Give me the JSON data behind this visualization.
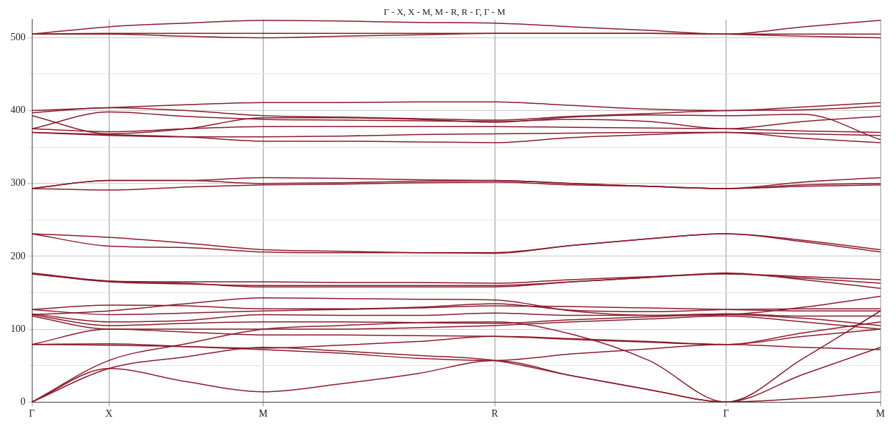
{
  "chart_data": {
    "type": "line",
    "title": "Γ - X, X - M, M - R, R - Γ, Γ - M",
    "categories": [
      "Γ",
      "X",
      null,
      "M",
      null,
      null,
      "R",
      null,
      null,
      "Γ",
      null,
      "M"
    ],
    "ylim": [
      0,
      525
    ],
    "yticks": [
      0,
      {
        "value": 50,
        "label": null
      },
      100,
      {
        "value": 150,
        "label": null
      },
      200,
      {
        "value": 250,
        "label": null
      },
      300,
      {
        "value": 350,
        "label": null
      },
      400,
      {
        "value": 450,
        "label": null
      },
      500
    ],
    "grid": true,
    "legend": false,
    "marker": "none",
    "line_style": "solid",
    "series": [
      {
        "color": "#8b1a2b",
        "values": [
          0,
          46,
          28,
          14,
          25,
          39,
          57,
          36,
          17,
          0,
          5,
          14
        ]
      },
      {
        "color": "#8b1a2b",
        "values": [
          0,
          46,
          62,
          75,
          70,
          64,
          57,
          36,
          17,
          0,
          38,
          75
        ]
      },
      {
        "color": "#8b1a2b",
        "values": [
          0,
          57,
          80,
          100,
          105,
          109,
          110,
          93,
          57,
          0,
          60,
          125
        ]
      },
      {
        "color": "#8b1a2b",
        "values": [
          79,
          80,
          76,
          72,
          67,
          60,
          57,
          66,
          73,
          79,
          75,
          72
        ]
      },
      {
        "color": "#8b1a2b",
        "values": [
          79,
          78,
          76,
          74,
          78,
          83,
          90,
          87,
          83,
          79,
          90,
          100
        ]
      },
      {
        "color": "#8b1a2b",
        "values": [
          79,
          100,
          96,
          92,
          92,
          91,
          90,
          86,
          82,
          79,
          95,
          110
        ]
      },
      {
        "color": "#8b1a2b",
        "values": [
          118,
          100,
          100,
          100,
          100,
          102,
          105,
          110,
          114,
          118,
          110,
          100
        ]
      },
      {
        "color": "#8b1a2b",
        "values": [
          120,
          105,
          108,
          110,
          110,
          109,
          108,
          113,
          117,
          120,
          115,
          105
        ]
      },
      {
        "color": "#8b1a2b",
        "values": [
          121,
          110,
          112,
          120,
          119,
          119,
          122,
          119,
          119,
          121,
          118,
          118
        ]
      },
      {
        "color": "#8b1a2b",
        "values": [
          127,
          120,
          122,
          125,
          127,
          129,
          132,
          131,
          129,
          127,
          125,
          125
        ]
      },
      {
        "color": "#8b1a2b",
        "values": [
          127,
          133,
          132,
          128,
          128,
          130,
          135,
          126,
          124,
          127,
          128,
          128
        ]
      },
      {
        "color": "#8b1a2b",
        "values": [
          120,
          125,
          135,
          143,
          142,
          141,
          140,
          125,
          119,
          120,
          130,
          145
        ]
      },
      {
        "color": "#8b1a2b",
        "values": [
          176,
          166,
          165,
          165,
          164,
          164,
          163,
          168,
          172,
          176,
          172,
          168
        ]
      },
      {
        "color": "#8b1a2b",
        "values": [
          176,
          165,
          162,
          160,
          160,
          160,
          160,
          165,
          171,
          176,
          170,
          163
        ]
      },
      {
        "color": "#8b1a2b",
        "values": [
          177,
          166,
          163,
          158,
          158,
          158,
          158,
          165,
          171,
          177,
          168,
          156
        ]
      },
      {
        "color": "#8b1a2b",
        "values": [
          231,
          226,
          218,
          209,
          207,
          205,
          204,
          215,
          224,
          231,
          222,
          209
        ]
      },
      {
        "color": "#8b1a2b",
        "values": [
          231,
          214,
          212,
          206,
          205,
          205,
          205,
          215,
          224,
          231,
          220,
          206
        ]
      },
      {
        "color": "#8b1a2b",
        "values": [
          293,
          304,
          304,
          300,
          301,
          303,
          304,
          300,
          296,
          293,
          302,
          308
        ]
      },
      {
        "color": "#8b1a2b",
        "values": [
          293,
          291,
          295,
          298,
          299,
          301,
          302,
          298,
          296,
          293,
          298,
          300
        ]
      },
      {
        "color": "#8b1a2b",
        "values": [
          293,
          304,
          304,
          308,
          307,
          305,
          304,
          300,
          296,
          293,
          296,
          298
        ]
      },
      {
        "color": "#8b1a2b",
        "values": [
          370,
          367,
          364,
          358,
          358,
          357,
          356,
          363,
          367,
          370,
          362,
          356
        ]
      },
      {
        "color": "#8b1a2b",
        "values": [
          370,
          366,
          364,
          364,
          365,
          367,
          368,
          369,
          370,
          370,
          368,
          366
        ]
      },
      {
        "color": "#8b1a2b",
        "values": [
          375,
          371,
          375,
          378,
          378,
          378,
          378,
          377,
          376,
          375,
          372,
          370
        ]
      },
      {
        "color": "#8b1a2b",
        "values": [
          375,
          398,
          392,
          388,
          387,
          386,
          385,
          388,
          385,
          375,
          385,
          392
        ]
      },
      {
        "color": "#8b1a2b",
        "values": [
          393,
          368,
          375,
          390,
          390,
          388,
          384,
          391,
          394,
          393,
          395,
          360
        ]
      },
      {
        "color": "#8b1a2b",
        "values": [
          400,
          404,
          408,
          411,
          411,
          412,
          412,
          407,
          402,
          400,
          405,
          411
        ]
      },
      {
        "color": "#8b1a2b",
        "values": [
          397,
          404,
          400,
          393,
          391,
          389,
          387,
          392,
          396,
          400,
          401,
          406
        ]
      },
      {
        "color": "#8b1a2b",
        "values": [
          505,
          515,
          520,
          524,
          523,
          521,
          520,
          515,
          510,
          505,
          515,
          524
        ]
      },
      {
        "color": "#8b1a2b",
        "values": [
          505,
          506,
          506,
          506,
          506,
          506,
          506,
          506,
          506,
          505,
          505,
          505
        ]
      },
      {
        "color": "#8b1a2b",
        "values": [
          505,
          505,
          502,
          500,
          502,
          504,
          506,
          506,
          506,
          505,
          502,
          500
        ]
      }
    ]
  }
}
